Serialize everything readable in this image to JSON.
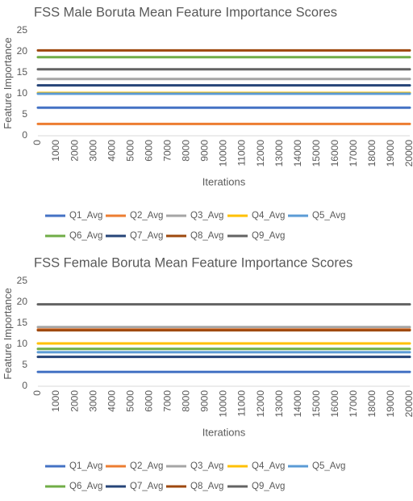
{
  "chart_data": [
    {
      "type": "line",
      "title": "FSS Male Boruta Mean Feature Importance Scores",
      "xlabel": "Iterations",
      "ylabel": "Feature Importance",
      "x_ticks": [
        "0",
        "1000",
        "2000",
        "3000",
        "4000",
        "5000",
        "6000",
        "7000",
        "8000",
        "9000",
        "10000",
        "11000",
        "12000",
        "13000",
        "14000",
        "15000",
        "16000",
        "17000",
        "18000",
        "19000",
        "20000"
      ],
      "xlim": [
        0,
        20000
      ],
      "y_ticks": [
        "0",
        "5",
        "10",
        "15",
        "20",
        "25"
      ],
      "ylim": [
        0,
        25
      ],
      "grid": false,
      "legend_position": "bottom",
      "series": [
        {
          "name": "Q1_Avg",
          "color": "#4472c4",
          "values": [
            6.7,
            6.7
          ]
        },
        {
          "name": "Q2_Avg",
          "color": "#ed7d31",
          "values": [
            2.8,
            2.8
          ]
        },
        {
          "name": "Q3_Avg",
          "color": "#a5a5a5",
          "values": [
            13.5,
            13.5
          ]
        },
        {
          "name": "Q4_Avg",
          "color": "#ffc000",
          "values": [
            10.2,
            10.2
          ]
        },
        {
          "name": "Q5_Avg",
          "color": "#5b9bd5",
          "values": [
            10.0,
            10.0
          ]
        },
        {
          "name": "Q6_Avg",
          "color": "#70ad47",
          "values": [
            18.7,
            18.7
          ]
        },
        {
          "name": "Q7_Avg",
          "color": "#264478",
          "values": [
            12.0,
            12.0
          ]
        },
        {
          "name": "Q8_Avg",
          "color": "#9e480e",
          "values": [
            20.3,
            20.3
          ]
        },
        {
          "name": "Q9_Avg",
          "color": "#636363",
          "values": [
            15.8,
            15.8
          ]
        }
      ]
    },
    {
      "type": "line",
      "title": "FSS Female Boruta Mean Feature Importance Scores",
      "xlabel": "Iterations",
      "ylabel": "Feature Importance",
      "x_ticks": [
        "0",
        "1000",
        "2000",
        "3000",
        "4000",
        "5000",
        "6000",
        "7000",
        "8000",
        "9000",
        "10000",
        "11000",
        "12000",
        "13000",
        "14000",
        "15000",
        "16000",
        "17000",
        "18000",
        "19000",
        "20000"
      ],
      "xlim": [
        0,
        20000
      ],
      "y_ticks": [
        "0",
        "5",
        "10",
        "15",
        "20",
        "25"
      ],
      "ylim": [
        0,
        25
      ],
      "grid": false,
      "legend_position": "bottom",
      "series": [
        {
          "name": "Q1_Avg",
          "color": "#4472c4",
          "values": [
            3.4,
            3.4
          ]
        },
        {
          "name": "Q2_Avg",
          "color": "#ed7d31",
          "values": [
            13.5,
            13.5
          ]
        },
        {
          "name": "Q3_Avg",
          "color": "#a5a5a5",
          "values": [
            14.1,
            14.1
          ]
        },
        {
          "name": "Q4_Avg",
          "color": "#ffc000",
          "values": [
            10.2,
            10.2
          ]
        },
        {
          "name": "Q5_Avg",
          "color": "#5b9bd5",
          "values": [
            8.1,
            8.1
          ]
        },
        {
          "name": "Q6_Avg",
          "color": "#70ad47",
          "values": [
            8.9,
            8.9
          ]
        },
        {
          "name": "Q7_Avg",
          "color": "#264478",
          "values": [
            7.0,
            7.0
          ]
        },
        {
          "name": "Q8_Avg",
          "color": "#9e480e",
          "values": [
            13.3,
            13.3
          ]
        },
        {
          "name": "Q9_Avg",
          "color": "#636363",
          "values": [
            19.5,
            19.5
          ]
        }
      ]
    }
  ]
}
